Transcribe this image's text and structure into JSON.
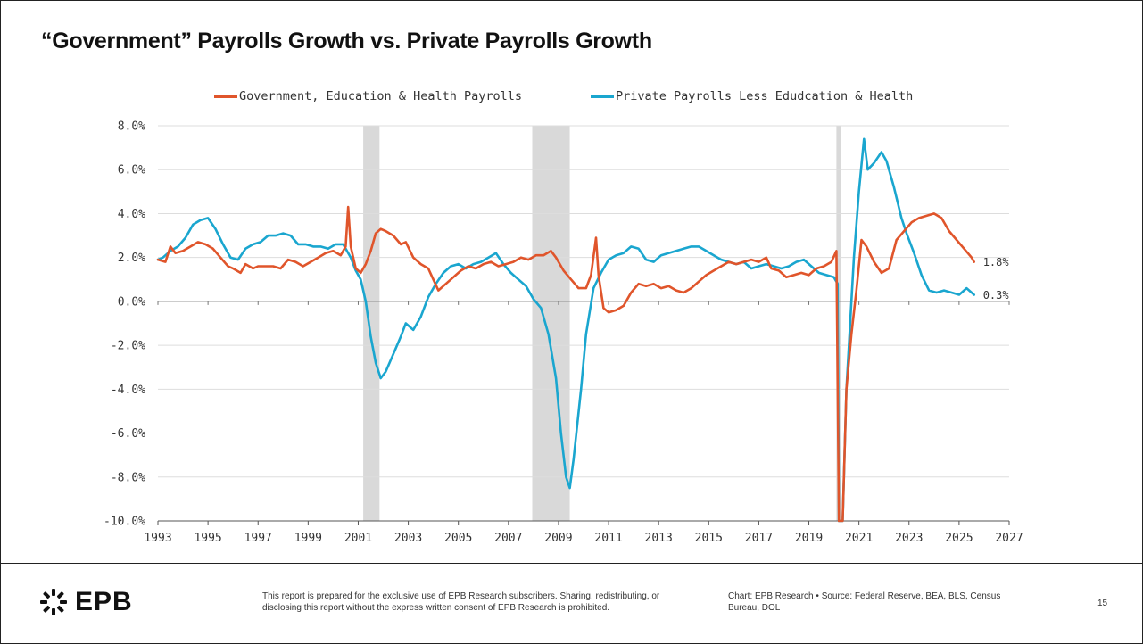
{
  "title": "“Government” Payrolls Growth vs. Private Payrolls Growth",
  "footer": {
    "logo_text": "EPB",
    "disclaimer": "This report is prepared for the exclusive use of EPB Research subscribers. Sharing, redistributing, or disclosing this report without the express written consent of EPB Research is prohibited.",
    "chart_credit": "Chart: EPB Research",
    "separator": "•",
    "source": "Source: Federal Reserve, BEA, BLS, Census Bureau, DOL",
    "page_number": "15"
  },
  "colors": {
    "government": "#e0552b",
    "private": "#1aa6cf",
    "recession": "#d9d9d9",
    "grid": "#dddddd"
  },
  "chart_data": {
    "type": "line",
    "xlim": [
      1993,
      2027
    ],
    "ylim": [
      -10,
      8
    ],
    "x_ticks": [
      1993,
      1995,
      1997,
      1999,
      2001,
      2003,
      2005,
      2007,
      2009,
      2011,
      2013,
      2015,
      2017,
      2019,
      2021,
      2023,
      2025,
      2027
    ],
    "x_tick_labels": [
      "1993",
      "1995",
      "1997",
      "1999",
      "2001",
      "2003",
      "2005",
      "2007",
      "2009",
      "2011",
      "2013",
      "2015",
      "2017",
      "2019",
      "2021",
      "2023",
      "2025",
      "2027"
    ],
    "y_ticks": [
      -10,
      -8,
      -6,
      -4,
      -2,
      0,
      2,
      4,
      6,
      8
    ],
    "y_tick_labels": [
      "-10.0%",
      "-8.0%",
      "-6.0%",
      "-4.0%",
      "-2.0%",
      "0.0%",
      "2.0%",
      "4.0%",
      "6.0%",
      "8.0%"
    ],
    "grid": "horizontal",
    "legend_position": "top",
    "recessions": [
      [
        2001.2,
        2001.85
      ],
      [
        2007.95,
        2009.45
      ],
      [
        2020.1,
        2020.3
      ]
    ],
    "series": [
      {
        "name": "Government, Education & Health Payrolls",
        "color": "#e0552b",
        "end_label": "1.8%",
        "points": [
          [
            1993.0,
            1.9
          ],
          [
            1993.3,
            1.8
          ],
          [
            1993.5,
            2.5
          ],
          [
            1993.7,
            2.2
          ],
          [
            1994.0,
            2.3
          ],
          [
            1994.3,
            2.5
          ],
          [
            1994.6,
            2.7
          ],
          [
            1994.9,
            2.6
          ],
          [
            1995.2,
            2.4
          ],
          [
            1995.5,
            2.0
          ],
          [
            1995.8,
            1.6
          ],
          [
            1996.0,
            1.5
          ],
          [
            1996.3,
            1.3
          ],
          [
            1996.5,
            1.7
          ],
          [
            1996.8,
            1.5
          ],
          [
            1997.0,
            1.6
          ],
          [
            1997.3,
            1.6
          ],
          [
            1997.6,
            1.6
          ],
          [
            1997.9,
            1.5
          ],
          [
            1998.2,
            1.9
          ],
          [
            1998.5,
            1.8
          ],
          [
            1998.8,
            1.6
          ],
          [
            1999.1,
            1.8
          ],
          [
            1999.4,
            2.0
          ],
          [
            1999.7,
            2.2
          ],
          [
            2000.0,
            2.3
          ],
          [
            2000.3,
            2.1
          ],
          [
            2000.5,
            2.5
          ],
          [
            2000.6,
            4.3
          ],
          [
            2000.7,
            2.5
          ],
          [
            2000.9,
            1.5
          ],
          [
            2001.1,
            1.3
          ],
          [
            2001.3,
            1.7
          ],
          [
            2001.5,
            2.3
          ],
          [
            2001.7,
            3.1
          ],
          [
            2001.9,
            3.3
          ],
          [
            2002.1,
            3.2
          ],
          [
            2002.4,
            3.0
          ],
          [
            2002.7,
            2.6
          ],
          [
            2002.9,
            2.7
          ],
          [
            2003.2,
            2.0
          ],
          [
            2003.5,
            1.7
          ],
          [
            2003.8,
            1.5
          ],
          [
            2004.0,
            1.0
          ],
          [
            2004.2,
            0.5
          ],
          [
            2004.5,
            0.8
          ],
          [
            2004.8,
            1.1
          ],
          [
            2005.1,
            1.4
          ],
          [
            2005.4,
            1.6
          ],
          [
            2005.7,
            1.5
          ],
          [
            2006.0,
            1.7
          ],
          [
            2006.3,
            1.8
          ],
          [
            2006.6,
            1.6
          ],
          [
            2006.9,
            1.7
          ],
          [
            2007.2,
            1.8
          ],
          [
            2007.5,
            2.0
          ],
          [
            2007.8,
            1.9
          ],
          [
            2008.1,
            2.1
          ],
          [
            2008.4,
            2.1
          ],
          [
            2008.7,
            2.3
          ],
          [
            2008.9,
            2.0
          ],
          [
            2009.2,
            1.4
          ],
          [
            2009.5,
            1.0
          ],
          [
            2009.8,
            0.6
          ],
          [
            2010.1,
            0.6
          ],
          [
            2010.3,
            1.2
          ],
          [
            2010.5,
            2.9
          ],
          [
            2010.6,
            1.2
          ],
          [
            2010.8,
            -0.3
          ],
          [
            2011.0,
            -0.5
          ],
          [
            2011.3,
            -0.4
          ],
          [
            2011.6,
            -0.2
          ],
          [
            2011.9,
            0.4
          ],
          [
            2012.2,
            0.8
          ],
          [
            2012.5,
            0.7
          ],
          [
            2012.8,
            0.8
          ],
          [
            2013.1,
            0.6
          ],
          [
            2013.4,
            0.7
          ],
          [
            2013.7,
            0.5
          ],
          [
            2014.0,
            0.4
          ],
          [
            2014.3,
            0.6
          ],
          [
            2014.6,
            0.9
          ],
          [
            2014.9,
            1.2
          ],
          [
            2015.2,
            1.4
          ],
          [
            2015.5,
            1.6
          ],
          [
            2015.8,
            1.8
          ],
          [
            2016.1,
            1.7
          ],
          [
            2016.4,
            1.8
          ],
          [
            2016.7,
            1.9
          ],
          [
            2017.0,
            1.8
          ],
          [
            2017.3,
            2.0
          ],
          [
            2017.5,
            1.5
          ],
          [
            2017.8,
            1.4
          ],
          [
            2018.1,
            1.1
          ],
          [
            2018.4,
            1.2
          ],
          [
            2018.7,
            1.3
          ],
          [
            2019.0,
            1.2
          ],
          [
            2019.3,
            1.5
          ],
          [
            2019.6,
            1.6
          ],
          [
            2019.9,
            1.8
          ],
          [
            2020.1,
            2.3
          ],
          [
            2020.2,
            -10.0
          ],
          [
            2020.35,
            -10.0
          ],
          [
            2020.5,
            -4.0
          ],
          [
            2020.7,
            -1.5
          ],
          [
            2020.9,
            0.5
          ],
          [
            2021.1,
            2.8
          ],
          [
            2021.3,
            2.5
          ],
          [
            2021.6,
            1.8
          ],
          [
            2021.9,
            1.3
          ],
          [
            2022.2,
            1.5
          ],
          [
            2022.5,
            2.8
          ],
          [
            2022.8,
            3.2
          ],
          [
            2023.1,
            3.6
          ],
          [
            2023.4,
            3.8
          ],
          [
            2023.7,
            3.9
          ],
          [
            2024.0,
            4.0
          ],
          [
            2024.3,
            3.8
          ],
          [
            2024.6,
            3.2
          ],
          [
            2024.9,
            2.8
          ],
          [
            2025.2,
            2.4
          ],
          [
            2025.5,
            2.0
          ],
          [
            2025.6,
            1.8
          ]
        ]
      },
      {
        "name": "Private Payrolls Less Edudcation & Health",
        "color": "#1aa6cf",
        "end_label": "0.3%",
        "points": [
          [
            1993.0,
            1.9
          ],
          [
            1993.2,
            2.0
          ],
          [
            1993.5,
            2.3
          ],
          [
            1993.8,
            2.5
          ],
          [
            1994.1,
            2.9
          ],
          [
            1994.4,
            3.5
          ],
          [
            1994.7,
            3.7
          ],
          [
            1995.0,
            3.8
          ],
          [
            1995.3,
            3.3
          ],
          [
            1995.6,
            2.6
          ],
          [
            1995.9,
            2.0
          ],
          [
            1996.2,
            1.9
          ],
          [
            1996.5,
            2.4
          ],
          [
            1996.8,
            2.6
          ],
          [
            1997.1,
            2.7
          ],
          [
            1997.4,
            3.0
          ],
          [
            1997.7,
            3.0
          ],
          [
            1998.0,
            3.1
          ],
          [
            1998.3,
            3.0
          ],
          [
            1998.6,
            2.6
          ],
          [
            1998.9,
            2.6
          ],
          [
            1999.2,
            2.5
          ],
          [
            1999.5,
            2.5
          ],
          [
            1999.8,
            2.4
          ],
          [
            2000.1,
            2.6
          ],
          [
            2000.4,
            2.6
          ],
          [
            2000.7,
            2.0
          ],
          [
            2000.9,
            1.4
          ],
          [
            2001.1,
            1.0
          ],
          [
            2001.3,
            0.0
          ],
          [
            2001.5,
            -1.6
          ],
          [
            2001.7,
            -2.8
          ],
          [
            2001.9,
            -3.5
          ],
          [
            2002.1,
            -3.2
          ],
          [
            2002.4,
            -2.4
          ],
          [
            2002.7,
            -1.6
          ],
          [
            2002.9,
            -1.0
          ],
          [
            2003.2,
            -1.3
          ],
          [
            2003.5,
            -0.7
          ],
          [
            2003.8,
            0.2
          ],
          [
            2004.1,
            0.8
          ],
          [
            2004.4,
            1.3
          ],
          [
            2004.7,
            1.6
          ],
          [
            2005.0,
            1.7
          ],
          [
            2005.3,
            1.5
          ],
          [
            2005.6,
            1.7
          ],
          [
            2005.9,
            1.8
          ],
          [
            2006.2,
            2.0
          ],
          [
            2006.5,
            2.2
          ],
          [
            2006.8,
            1.7
          ],
          [
            2007.1,
            1.3
          ],
          [
            2007.4,
            1.0
          ],
          [
            2007.7,
            0.7
          ],
          [
            2008.0,
            0.1
          ],
          [
            2008.3,
            -0.3
          ],
          [
            2008.6,
            -1.5
          ],
          [
            2008.9,
            -3.5
          ],
          [
            2009.1,
            -6.0
          ],
          [
            2009.3,
            -8.0
          ],
          [
            2009.45,
            -8.5
          ],
          [
            2009.6,
            -7.2
          ],
          [
            2009.9,
            -4.0
          ],
          [
            2010.1,
            -1.5
          ],
          [
            2010.4,
            0.6
          ],
          [
            2010.7,
            1.3
          ],
          [
            2011.0,
            1.9
          ],
          [
            2011.3,
            2.1
          ],
          [
            2011.6,
            2.2
          ],
          [
            2011.9,
            2.5
          ],
          [
            2012.2,
            2.4
          ],
          [
            2012.5,
            1.9
          ],
          [
            2012.8,
            1.8
          ],
          [
            2013.1,
            2.1
          ],
          [
            2013.4,
            2.2
          ],
          [
            2013.7,
            2.3
          ],
          [
            2014.0,
            2.4
          ],
          [
            2014.3,
            2.5
          ],
          [
            2014.6,
            2.5
          ],
          [
            2014.9,
            2.3
          ],
          [
            2015.2,
            2.1
          ],
          [
            2015.5,
            1.9
          ],
          [
            2015.8,
            1.8
          ],
          [
            2016.1,
            1.7
          ],
          [
            2016.4,
            1.8
          ],
          [
            2016.7,
            1.5
          ],
          [
            2017.0,
            1.6
          ],
          [
            2017.3,
            1.7
          ],
          [
            2017.6,
            1.6
          ],
          [
            2017.9,
            1.5
          ],
          [
            2018.2,
            1.6
          ],
          [
            2018.5,
            1.8
          ],
          [
            2018.8,
            1.9
          ],
          [
            2019.1,
            1.6
          ],
          [
            2019.4,
            1.3
          ],
          [
            2019.7,
            1.2
          ],
          [
            2020.0,
            1.1
          ],
          [
            2020.15,
            0.8
          ],
          [
            2020.2,
            -10.0
          ],
          [
            2020.35,
            -10.0
          ],
          [
            2020.5,
            -4.0
          ],
          [
            2020.8,
            2.0
          ],
          [
            2021.0,
            5.0
          ],
          [
            2021.2,
            7.4
          ],
          [
            2021.35,
            6.0
          ],
          [
            2021.6,
            6.3
          ],
          [
            2021.9,
            6.8
          ],
          [
            2022.1,
            6.4
          ],
          [
            2022.4,
            5.2
          ],
          [
            2022.7,
            3.8
          ],
          [
            2022.9,
            3.1
          ],
          [
            2023.2,
            2.2
          ],
          [
            2023.5,
            1.2
          ],
          [
            2023.8,
            0.5
          ],
          [
            2024.1,
            0.4
          ],
          [
            2024.4,
            0.5
          ],
          [
            2024.7,
            0.4
          ],
          [
            2025.0,
            0.3
          ],
          [
            2025.3,
            0.6
          ],
          [
            2025.5,
            0.4
          ],
          [
            2025.6,
            0.3
          ]
        ]
      }
    ]
  }
}
